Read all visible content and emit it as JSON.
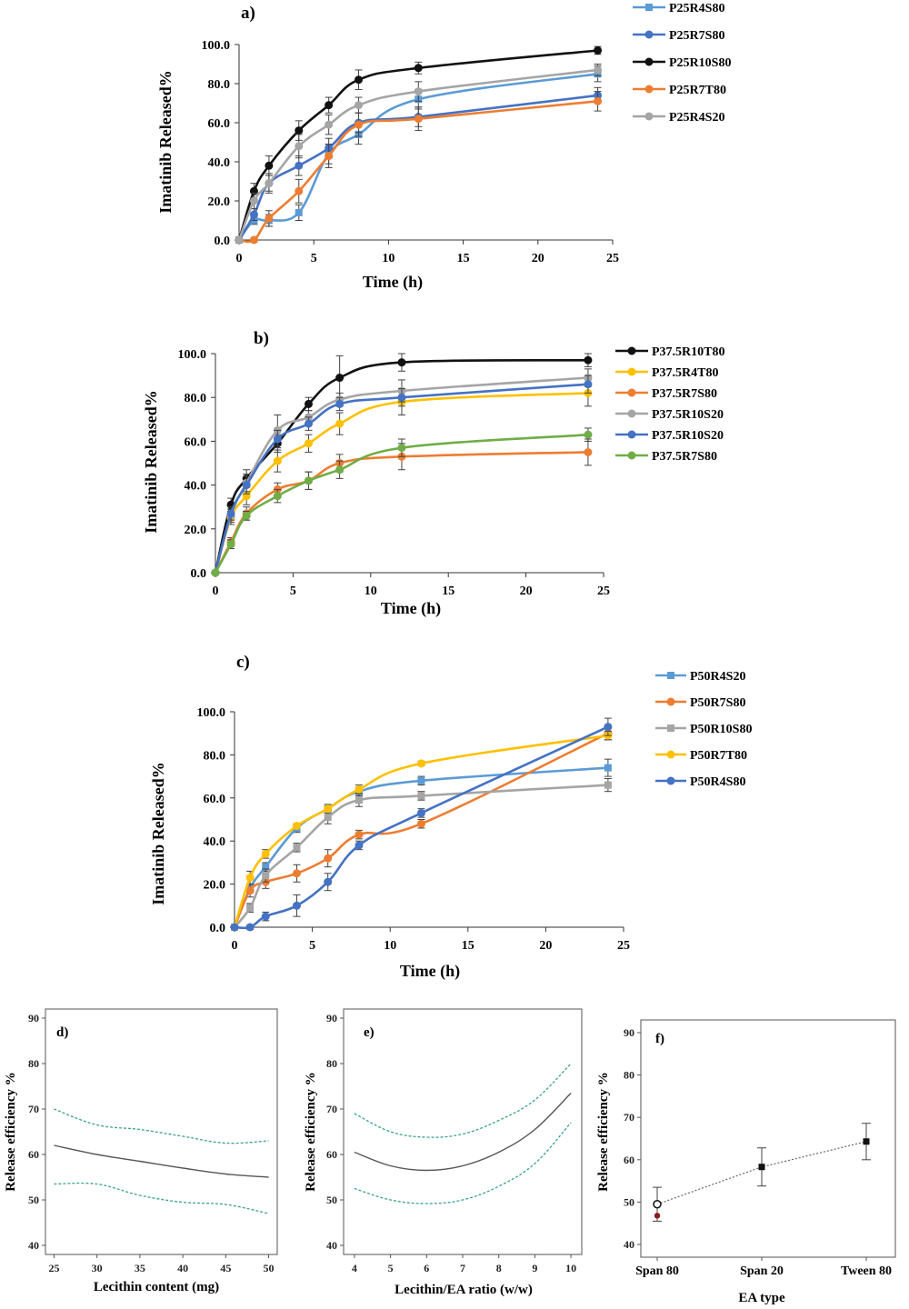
{
  "chart_data": [
    {
      "panel": "a)",
      "type": "line",
      "xlabel": "Time (h)",
      "ylabel": "Imatinib Released%",
      "xlim": [
        0,
        25
      ],
      "ylim": [
        0,
        100
      ],
      "x_ticks": [
        "0",
        "5",
        "10",
        "15",
        "20",
        "25"
      ],
      "y_ticks": [
        "0.0",
        "20.0",
        "40.0",
        "60.0",
        "80.0",
        "100.0"
      ],
      "legend_position": "right",
      "series": [
        {
          "name": "P25R4S80",
          "color": "#5b9bd5",
          "marker": "square",
          "x": [
            0,
            1,
            2,
            4,
            6,
            8,
            12,
            24
          ],
          "y": [
            0,
            10,
            10,
            14,
            44,
            54,
            72,
            85
          ],
          "err": [
            0,
            2,
            3,
            4,
            5,
            5,
            5,
            4
          ]
        },
        {
          "name": "P25R7S80",
          "color": "#4472c4",
          "marker": "circle",
          "x": [
            0,
            1,
            2,
            4,
            6,
            8,
            12,
            24
          ],
          "y": [
            0,
            13,
            29,
            38,
            47,
            60,
            63,
            74
          ],
          "err": [
            0,
            3,
            4,
            5,
            5,
            5,
            5,
            4
          ]
        },
        {
          "name": "P25R10S80",
          "color": "#111111",
          "marker": "circle",
          "x": [
            0,
            1,
            2,
            4,
            6,
            8,
            12,
            24
          ],
          "y": [
            0,
            25,
            38,
            56,
            69,
            82,
            88,
            97
          ],
          "err": [
            0,
            4,
            5,
            5,
            4,
            5,
            3,
            2
          ]
        },
        {
          "name": "P25R7T80",
          "color": "#ed7d31",
          "marker": "circle",
          "x": [
            0,
            1,
            2,
            4,
            6,
            8,
            12,
            24
          ],
          "y": [
            0,
            0,
            11,
            25,
            43,
            59,
            62,
            71
          ],
          "err": [
            0,
            1,
            4,
            6,
            6,
            6,
            6,
            5
          ]
        },
        {
          "name": "P25R4S20",
          "color": "#a5a5a5",
          "marker": "circle",
          "x": [
            0,
            1,
            2,
            4,
            6,
            8,
            12,
            24
          ],
          "y": [
            0,
            20,
            29,
            48,
            59,
            69,
            76,
            87
          ],
          "err": [
            0,
            4,
            5,
            6,
            5,
            4,
            5,
            3
          ]
        }
      ]
    },
    {
      "panel": "b)",
      "type": "line",
      "xlabel": "Time (h)",
      "ylabel": "Imatinib Released%",
      "xlim": [
        0,
        25
      ],
      "ylim": [
        0,
        100
      ],
      "x_ticks": [
        "0",
        "5",
        "10",
        "15",
        "20",
        "25"
      ],
      "y_ticks": [
        "0.0",
        "20.0",
        "40.0",
        "60.0",
        "80.0",
        "100.0"
      ],
      "legend_position": "right",
      "series": [
        {
          "name": "P37.5R10T80",
          "color": "#111111",
          "marker": "circle",
          "x": [
            0,
            1,
            2,
            4,
            6,
            8,
            12,
            24
          ],
          "y": [
            0,
            31,
            43,
            59,
            77,
            89,
            96,
            97
          ],
          "err": [
            0,
            3,
            4,
            4,
            3,
            10,
            4,
            3
          ]
        },
        {
          "name": "P37.5R4T80",
          "color": "#ffc000",
          "marker": "circle",
          "x": [
            0,
            1,
            2,
            4,
            6,
            8,
            12,
            24
          ],
          "y": [
            0,
            25,
            35,
            51,
            59,
            68,
            78,
            82
          ],
          "err": [
            0,
            3,
            4,
            5,
            4,
            5,
            6,
            6
          ]
        },
        {
          "name": "P37.5R7S80",
          "color": "#ed7d31",
          "marker": "circle",
          "x": [
            0,
            1,
            2,
            4,
            6,
            8,
            12,
            24
          ],
          "y": [
            0,
            14,
            27,
            38,
            42,
            50,
            53,
            55
          ],
          "err": [
            0,
            2,
            3,
            3,
            4,
            4,
            6,
            6
          ]
        },
        {
          "name": "P37.5R10S20",
          "color": "#a5a5a5",
          "marker": "circle",
          "x": [
            0,
            1,
            2,
            4,
            6,
            8,
            12,
            24
          ],
          "y": [
            0,
            26,
            41,
            65,
            71,
            79,
            83,
            89
          ],
          "err": [
            0,
            3,
            4,
            7,
            3,
            3,
            5,
            4
          ]
        },
        {
          "name": "P37.5R10S20",
          "color": "#4472c4",
          "marker": "circle",
          "x": [
            0,
            1,
            2,
            4,
            6,
            8,
            12,
            24
          ],
          "y": [
            0,
            27,
            40,
            61,
            68,
            77,
            80,
            86
          ],
          "err": [
            0,
            3,
            4,
            4,
            3,
            3,
            4,
            4
          ]
        },
        {
          "name": "P37.5R7S80",
          "color": "#70ad47",
          "marker": "circle",
          "x": [
            0,
            1,
            2,
            4,
            6,
            8,
            12,
            24
          ],
          "y": [
            0,
            13,
            26,
            35,
            42,
            47,
            57,
            63
          ],
          "err": [
            0,
            2,
            2,
            3,
            4,
            4,
            4,
            3
          ]
        }
      ]
    },
    {
      "panel": "c)",
      "type": "line",
      "xlabel": "Time (h)",
      "ylabel": "Imatinib Released%",
      "xlim": [
        0,
        25
      ],
      "ylim": [
        0,
        100
      ],
      "x_ticks": [
        "0",
        "5",
        "10",
        "15",
        "20",
        "25"
      ],
      "y_ticks": [
        "0.0",
        "20.0",
        "40.0",
        "60.0",
        "80.0",
        "100.0"
      ],
      "legend_position": "right",
      "series": [
        {
          "name": "P50R4S20",
          "color": "#5b9bd5",
          "marker": "square",
          "x": [
            0,
            1,
            2,
            4,
            6,
            8,
            12,
            24
          ],
          "y": [
            0,
            18,
            28,
            46,
            55,
            63,
            68,
            74
          ],
          "err": [
            0,
            2,
            2,
            2,
            2,
            2,
            2,
            4
          ]
        },
        {
          "name": "P50R7S80",
          "color": "#ed7d31",
          "marker": "circle",
          "x": [
            0,
            1,
            2,
            4,
            6,
            8,
            12,
            24
          ],
          "y": [
            0,
            17,
            21,
            25,
            32,
            43,
            48,
            90
          ],
          "err": [
            0,
            3,
            3,
            4,
            4,
            2,
            2,
            3
          ]
        },
        {
          "name": "P50R10S80",
          "color": "#a5a5a5",
          "marker": "square",
          "x": [
            0,
            1,
            2,
            4,
            6,
            8,
            12,
            24
          ],
          "y": [
            0,
            9,
            24,
            37,
            51,
            59,
            61,
            66
          ],
          "err": [
            0,
            2,
            3,
            2,
            3,
            3,
            2,
            3
          ]
        },
        {
          "name": "P50R7T80",
          "color": "#ffc000",
          "marker": "circle",
          "x": [
            0,
            1,
            2,
            4,
            6,
            8,
            12,
            24
          ],
          "y": [
            0,
            23,
            34,
            47,
            55,
            64,
            76,
            89
          ],
          "err": [
            0,
            3,
            2,
            1,
            1,
            2,
            1,
            2
          ]
        },
        {
          "name": "P50R4S80",
          "color": "#4472c4",
          "marker": "circle",
          "x": [
            0,
            1,
            2,
            4,
            6,
            8,
            12,
            24
          ],
          "y": [
            0,
            0,
            5,
            10,
            21,
            38,
            53,
            93
          ],
          "err": [
            0,
            1,
            2,
            5,
            4,
            2,
            2,
            4
          ]
        }
      ]
    },
    {
      "panel": "d)",
      "type": "line",
      "xlabel": "Lecithin content (mg)",
      "ylabel": "Release efficiency %",
      "xlim": [
        24,
        51
      ],
      "ylim": [
        38,
        92
      ],
      "x_ticks": [
        25,
        30,
        35,
        40,
        45,
        50
      ],
      "y_ticks": [
        40,
        50,
        60,
        70,
        80,
        90
      ],
      "series": [
        {
          "name": "",
          "style": "solid",
          "color": "#555555",
          "x": [
            25,
            30,
            35,
            40,
            45,
            50
          ],
          "y": [
            62,
            60,
            58.5,
            57,
            55.7,
            55
          ]
        },
        {
          "name": "",
          "style": "dashed",
          "color": "#3aa38c",
          "x": [
            25,
            30,
            35,
            40,
            45,
            50
          ],
          "y": [
            70,
            66.5,
            65.5,
            64,
            62.5,
            63
          ]
        },
        {
          "name": "",
          "style": "dashed",
          "color": "#3aa38c",
          "x": [
            25,
            30,
            35,
            40,
            45,
            50
          ],
          "y": [
            53.5,
            53.5,
            51,
            49.5,
            49,
            47
          ]
        }
      ]
    },
    {
      "panel": "e)",
      "type": "line",
      "xlabel": "Lecithin/EA ratio (w/w)",
      "ylabel": "Release efficiency %",
      "xlim": [
        3.7,
        10.3
      ],
      "ylim": [
        38,
        92
      ],
      "x_ticks": [
        4,
        5,
        6,
        7,
        8,
        9,
        10
      ],
      "y_ticks": [
        40,
        50,
        60,
        70,
        80,
        90
      ],
      "series": [
        {
          "name": "",
          "style": "solid",
          "color": "#555555",
          "x": [
            4,
            5,
            6,
            7,
            8,
            9,
            10
          ],
          "y": [
            60.5,
            57.5,
            56.5,
            57.5,
            60.5,
            65.5,
            73.5
          ]
        },
        {
          "name": "",
          "style": "dashed",
          "color": "#3aa38c",
          "x": [
            4,
            5,
            6,
            7,
            8,
            9,
            10
          ],
          "y": [
            69,
            65,
            63.8,
            64.5,
            67.5,
            72,
            80
          ]
        },
        {
          "name": "",
          "style": "dashed",
          "color": "#3aa38c",
          "x": [
            4,
            5,
            6,
            7,
            8,
            9,
            10
          ],
          "y": [
            52.5,
            50,
            49.2,
            50,
            53,
            58,
            67
          ]
        }
      ]
    },
    {
      "panel": "f)",
      "type": "scatter",
      "xlabel": "EA type",
      "ylabel": "Release efficiency %",
      "ylim": [
        37,
        93
      ],
      "categories": [
        "Span 80",
        "Span 20",
        "Tween 80"
      ],
      "y_ticks": [
        40,
        50,
        60,
        70,
        80,
        90
      ],
      "values": [
        49.5,
        58.3,
        64.3
      ],
      "err": [
        4,
        4.5,
        4.3
      ],
      "extra_point": {
        "category": "Span 80",
        "value": 46.8,
        "color": "#8b1a1a"
      }
    }
  ]
}
